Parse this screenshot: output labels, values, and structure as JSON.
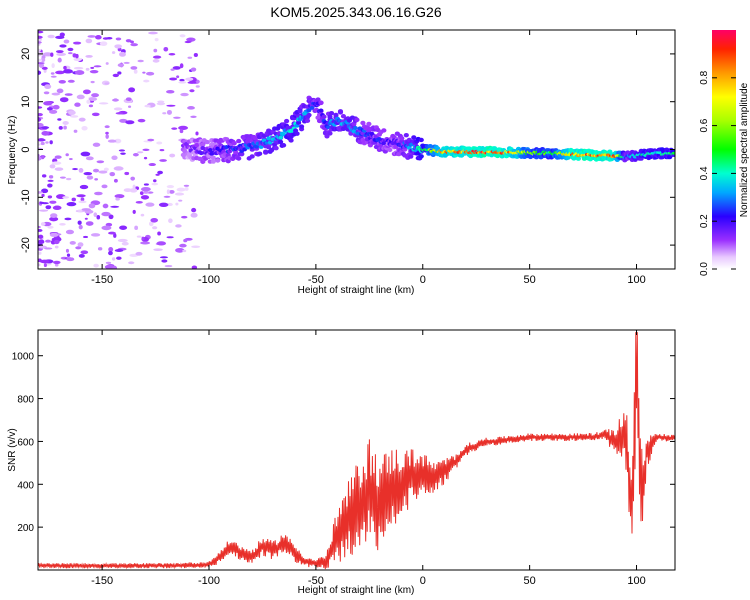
{
  "title": "KOM5.2025.343.06.16.G26",
  "chart_data": [
    {
      "type": "heatmap",
      "xlabel": "Height of straight line (km)",
      "ylabel": "Frequency (Hz)",
      "xlim": [
        -180,
        118
      ],
      "ylim": [
        -25,
        25
      ],
      "x_ticks": [
        -150,
        -100,
        -50,
        0,
        50,
        100
      ],
      "y_ticks": [
        -20,
        -10,
        0,
        10,
        20
      ],
      "colorbar": {
        "label": "Normalized spectral amplitude",
        "range": [
          0,
          1
        ],
        "ticks": [
          0.0,
          0.2,
          0.4,
          0.6,
          0.8
        ]
      },
      "ridge": {
        "x": [
          -110,
          -100,
          -90,
          -80,
          -70,
          -62,
          -56,
          -50,
          -45,
          -40,
          -35,
          -30,
          -25,
          -20,
          -15,
          -10,
          -5,
          0,
          10,
          20,
          30,
          40,
          50,
          60,
          70,
          80,
          90,
          95,
          100,
          105,
          110,
          118
        ],
        "frequency": [
          0.5,
          -0.5,
          0,
          0.5,
          2,
          4,
          7,
          10,
          5,
          6,
          5,
          4,
          3,
          2,
          1.5,
          1,
          0.5,
          0,
          -0.5,
          -0.5,
          -0.5,
          -0.6,
          -0.7,
          -0.8,
          -1,
          -1.2,
          -1.3,
          -1.5,
          -1.3,
          -1,
          -0.8,
          -0.8
        ],
        "amplitude": [
          0.15,
          0.2,
          0.25,
          0.3,
          0.35,
          0.4,
          0.35,
          0.25,
          0.3,
          0.35,
          0.35,
          0.3,
          0.25,
          0.25,
          0.2,
          0.25,
          0.35,
          0.5,
          0.85,
          0.9,
          0.95,
          0.9,
          0.6,
          0.55,
          0.9,
          0.95,
          0.9,
          0.3,
          0.4,
          0.45,
          0.45,
          0.45
        ]
      }
    },
    {
      "type": "line",
      "xlabel": "Height of straight line (km)",
      "ylabel": "SNR (v/v)",
      "xlim": [
        -180,
        118
      ],
      "ylim": [
        0,
        1120
      ],
      "x_ticks": [
        -150,
        -100,
        -50,
        0,
        50,
        100
      ],
      "y_ticks": [
        200,
        400,
        600,
        800,
        1000
      ],
      "color": "#e8302a",
      "series": [
        {
          "x": [
            -180,
            -150,
            -120,
            -100,
            -95,
            -90,
            -85,
            -80,
            -75,
            -70,
            -65,
            -60,
            -55,
            -50,
            -45,
            -40,
            -35,
            -30,
            -25,
            -20,
            -15,
            -10,
            -5,
            0,
            5,
            10,
            15,
            20,
            25,
            30,
            35,
            40,
            50,
            60,
            70,
            80,
            85,
            90,
            95,
            98,
            100,
            102,
            105,
            110,
            118
          ],
          "values": [
            20,
            20,
            20,
            25,
            60,
            110,
            80,
            60,
            110,
            90,
            130,
            80,
            40,
            30,
            40,
            150,
            230,
            300,
            360,
            300,
            380,
            400,
            440,
            450,
            430,
            460,
            500,
            560,
            580,
            600,
            600,
            610,
            620,
            620,
            620,
            620,
            630,
            600,
            620,
            250,
            1050,
            300,
            560,
            620,
            615
          ],
          "amplitude": [
            12,
            12,
            12,
            15,
            30,
            40,
            35,
            35,
            45,
            45,
            50,
            45,
            25,
            20,
            40,
            140,
            180,
            220,
            260,
            230,
            200,
            170,
            130,
            100,
            80,
            60,
            40,
            30,
            22,
            20,
            20,
            18,
            18,
            18,
            18,
            20,
            25,
            60,
            160,
            260,
            420,
            260,
            80,
            20,
            15
          ]
        }
      ]
    }
  ]
}
